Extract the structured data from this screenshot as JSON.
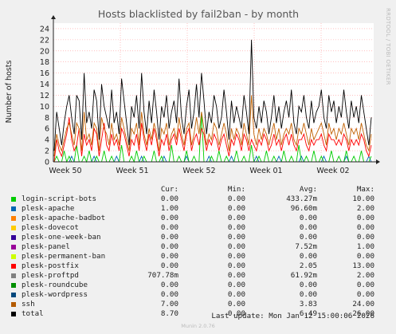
{
  "chart_data": {
    "type": "line",
    "title": "Hosts blacklisted by fail2ban - by month",
    "ylabel": "Number of hosts",
    "xlabel": "",
    "ylim": [
      0,
      25
    ],
    "y_ticks": [
      0,
      2,
      4,
      6,
      8,
      10,
      12,
      14,
      16,
      18,
      20,
      22,
      24
    ],
    "x_ticks": [
      "Week 50",
      "Week 51",
      "Week 52",
      "Week 01",
      "Week 02"
    ],
    "grid": true,
    "series_drawn": [
      {
        "name": "total",
        "color": "#000000",
        "values": [
          2,
          9,
          6,
          3,
          7,
          10,
          12,
          8,
          5,
          12,
          11,
          4,
          16,
          7,
          9,
          6,
          13,
          11,
          4,
          14,
          10,
          8,
          6,
          13,
          7,
          9,
          5,
          15,
          11,
          7,
          3,
          10,
          8,
          12,
          6,
          16,
          9,
          5,
          11,
          7,
          13,
          9,
          4,
          10,
          8,
          12,
          6,
          9,
          11,
          7,
          15,
          8,
          5,
          10,
          13,
          6,
          9,
          14,
          8,
          16,
          11,
          5,
          9,
          7,
          12,
          10,
          6,
          8,
          13,
          9,
          4,
          11,
          7,
          10,
          8,
          6,
          12,
          9,
          5,
          22,
          8,
          6,
          10,
          7,
          11,
          9,
          5,
          8,
          12,
          7,
          10,
          6,
          9,
          11,
          8,
          13,
          7,
          5,
          10,
          9,
          12,
          8,
          6,
          11,
          7,
          9,
          10,
          13,
          8,
          6,
          12,
          9,
          11,
          7,
          10,
          8,
          13,
          9,
          6,
          11,
          8,
          10,
          7,
          12,
          9,
          6,
          3,
          8
        ]
      },
      {
        "name": "ssh",
        "color": "#c06000",
        "values": [
          1,
          5,
          3,
          2,
          4,
          6,
          7,
          5,
          3,
          7,
          6,
          2,
          9,
          4,
          5,
          3,
          7,
          6,
          2,
          8,
          6,
          5,
          3,
          7,
          4,
          5,
          3,
          8,
          6,
          4,
          2,
          6,
          5,
          7,
          3,
          9,
          5,
          3,
          6,
          4,
          7,
          5,
          2,
          6,
          5,
          7,
          3,
          5,
          6,
          4,
          8,
          5,
          3,
          6,
          7,
          3,
          5,
          8,
          5,
          9,
          6,
          3,
          5,
          4,
          7,
          6,
          3,
          5,
          7,
          5,
          2,
          6,
          4,
          6,
          5,
          3,
          7,
          5,
          3,
          12,
          5,
          3,
          6,
          4,
          6,
          5,
          3,
          5,
          7,
          4,
          6,
          3,
          5,
          6,
          5,
          7,
          4,
          3,
          6,
          5,
          7,
          5,
          3,
          6,
          4,
          5,
          6,
          7,
          5,
          3,
          7,
          5,
          6,
          4,
          6,
          5,
          7,
          5,
          3,
          6,
          5,
          6,
          4,
          7,
          5,
          3,
          2,
          5
        ]
      },
      {
        "name": "plesk-postfix",
        "color": "#ff0000",
        "values": [
          0,
          4,
          2,
          1,
          3,
          5,
          8,
          4,
          2,
          3,
          6,
          1,
          5,
          3,
          4,
          2,
          6,
          5,
          1,
          4,
          7,
          3,
          2,
          5,
          3,
          4,
          2,
          6,
          5,
          3,
          1,
          4,
          3,
          5,
          2,
          7,
          4,
          2,
          5,
          3,
          6,
          4,
          1,
          4,
          3,
          5,
          2,
          4,
          5,
          3,
          6,
          4,
          2,
          5,
          6,
          2,
          4,
          5,
          3,
          6,
          5,
          2,
          4,
          3,
          5,
          4,
          2,
          4,
          5,
          3,
          1,
          4,
          3,
          5,
          4,
          2,
          5,
          4,
          2,
          4,
          3,
          2,
          4,
          3,
          5,
          4,
          2,
          3,
          5,
          3,
          4,
          2,
          4,
          5,
          3,
          5,
          3,
          2,
          4,
          4,
          5,
          3,
          2,
          4,
          3,
          4,
          4,
          5,
          3,
          2,
          5,
          4,
          4,
          3,
          4,
          3,
          5,
          4,
          2,
          4,
          3,
          4,
          3,
          5,
          4,
          2,
          1,
          3
        ]
      },
      {
        "name": "login-script-bots",
        "color": "#00cc00",
        "values": [
          0,
          1,
          0,
          0,
          2,
          0,
          1,
          0,
          0,
          3,
          0,
          0,
          1,
          0,
          2,
          0,
          0,
          1,
          0,
          0,
          2,
          0,
          0,
          1,
          0,
          0,
          0,
          3,
          0,
          0,
          0,
          1,
          0,
          2,
          0,
          0,
          1,
          0,
          0,
          0,
          2,
          0,
          0,
          1,
          0,
          0,
          0,
          3,
          0,
          0,
          1,
          0,
          0,
          2,
          0,
          0,
          1,
          0,
          0,
          9,
          0,
          0,
          0,
          1,
          0,
          0,
          2,
          0,
          0,
          1,
          0,
          0,
          0,
          2,
          0,
          0,
          1,
          0,
          0,
          3,
          0,
          0,
          1,
          0,
          0,
          2,
          0,
          0,
          1,
          0,
          0,
          0,
          2,
          0,
          0,
          1,
          0,
          0,
          3,
          0,
          0,
          1,
          0,
          0,
          2,
          0,
          0,
          1,
          0,
          0,
          0,
          2,
          0,
          0,
          1,
          0,
          0,
          2,
          0,
          0,
          1,
          0,
          0,
          2,
          0,
          0,
          0,
          1
        ]
      },
      {
        "name": "plesk-apache",
        "color": "#0066b3",
        "values": [
          0,
          0,
          0,
          0,
          0,
          0,
          0,
          1,
          0,
          0,
          0,
          0,
          0,
          0,
          0,
          0,
          1,
          0,
          0,
          0,
          0,
          0,
          0,
          0,
          0,
          1,
          0,
          0,
          0,
          0,
          0,
          0,
          0,
          0,
          0,
          1,
          0,
          0,
          0,
          0,
          0,
          0,
          0,
          0,
          1,
          0,
          0,
          0,
          0,
          0,
          0,
          0,
          0,
          1,
          0,
          0,
          0,
          0,
          0,
          0,
          0,
          0,
          1,
          0,
          0,
          0,
          0,
          0,
          0,
          0,
          0,
          1,
          0,
          0,
          0,
          0,
          0,
          0,
          0,
          0,
          0,
          1,
          0,
          0,
          0,
          0,
          0,
          0,
          0,
          0,
          1,
          0,
          0,
          0,
          0,
          0,
          0,
          0,
          0,
          1,
          0,
          0,
          0,
          0,
          0,
          0,
          0,
          0,
          1,
          0,
          0,
          0,
          0,
          0,
          0,
          0,
          0,
          1,
          0,
          0,
          0,
          0,
          0,
          0,
          0,
          0,
          1,
          0
        ]
      }
    ],
    "legend": {
      "headers": [
        "Cur:",
        "Min:",
        "Avg:",
        "Max:"
      ],
      "rows": [
        {
          "name": "login-script-bots",
          "color": "#00cc00",
          "cur": "0.00",
          "min": "0.00",
          "avg": "433.27m",
          "max": "10.00"
        },
        {
          "name": "plesk-apache",
          "color": "#0066b3",
          "cur": "1.00",
          "min": "0.00",
          "avg": "96.60m",
          "max": "2.00"
        },
        {
          "name": "plesk-apache-badbot",
          "color": "#ff8000",
          "cur": "0.00",
          "min": "0.00",
          "avg": "0.00",
          "max": "0.00"
        },
        {
          "name": "plesk-dovecot",
          "color": "#ffcc00",
          "cur": "0.00",
          "min": "0.00",
          "avg": "0.00",
          "max": "0.00"
        },
        {
          "name": "plesk-one-week-ban",
          "color": "#330099",
          "cur": "0.00",
          "min": "0.00",
          "avg": "0.00",
          "max": "0.00"
        },
        {
          "name": "plesk-panel",
          "color": "#990099",
          "cur": "0.00",
          "min": "0.00",
          "avg": "7.52m",
          "max": "1.00"
        },
        {
          "name": "plesk-permanent-ban",
          "color": "#ccff00",
          "cur": "0.00",
          "min": "0.00",
          "avg": "0.00",
          "max": "0.00"
        },
        {
          "name": "plesk-postfix",
          "color": "#ff0000",
          "cur": "0.00",
          "min": "0.00",
          "avg": "2.05",
          "max": "13.00"
        },
        {
          "name": "plesk-proftpd",
          "color": "#808080",
          "cur": "707.78m",
          "min": "0.00",
          "avg": "61.92m",
          "max": "2.00"
        },
        {
          "name": "plesk-roundcube",
          "color": "#008f00",
          "cur": "0.00",
          "min": "0.00",
          "avg": "0.00",
          "max": "0.00"
        },
        {
          "name": "plesk-wordpress",
          "color": "#00487d",
          "cur": "0.00",
          "min": "0.00",
          "avg": "0.00",
          "max": "0.00"
        },
        {
          "name": "ssh",
          "color": "#b35a00",
          "cur": "7.00",
          "min": "0.00",
          "avg": "3.83",
          "max": "24.00"
        },
        {
          "name": "total",
          "color": "#000000",
          "cur": "8.70",
          "min": "0.00",
          "avg": "6.49",
          "max": "26.00"
        }
      ]
    }
  },
  "side_label": "RRDTOOL / TOBI OETIKER",
  "footer": {
    "last_update": "Last update: Mon Jan 12 15:00:06 2026",
    "generator": "Munin 2.0.76"
  }
}
